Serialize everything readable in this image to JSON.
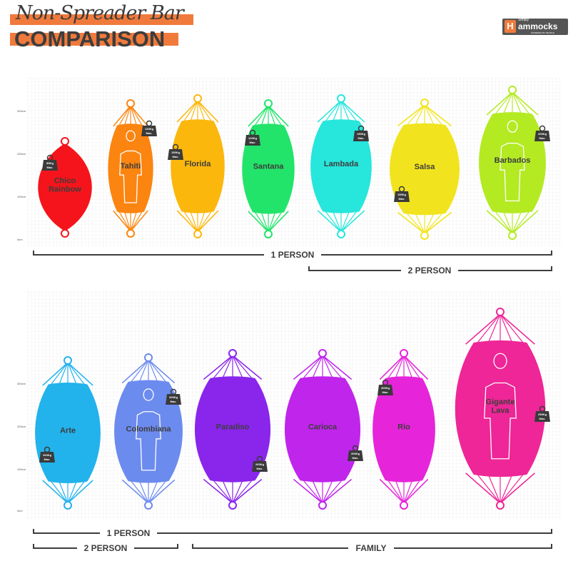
{
  "title": {
    "script": "Non-Spreader Bar",
    "main": "COMPARISON"
  },
  "logo": {
    "small": "Simply",
    "name": "ammocks",
    "initial": "H",
    "tagline": "POWERED BY PEOPLE",
    "accent": "#f07a3c"
  },
  "axis_labels": [
    "300cm",
    "200cm",
    "100cm",
    "0cm"
  ],
  "top_row": [
    {
      "name": "Chico Rainbow",
      "weight": "80Kg",
      "unit": "Max.",
      "color": "#f5141b",
      "person": false
    },
    {
      "name": "Tahiti",
      "weight": "120Kg",
      "unit": "Max.",
      "color": "#fb8510",
      "person": true
    },
    {
      "name": "Florida",
      "weight": "150Kg",
      "unit": "Max.",
      "color": "#fcb70c",
      "person": false
    },
    {
      "name": "Santana",
      "weight": "120Kg",
      "unit": "Max.",
      "color": "#22e46a",
      "person": false
    },
    {
      "name": "Lambada",
      "weight": "150Kg",
      "unit": "Max.",
      "color": "#27e6dc",
      "person": false
    },
    {
      "name": "Salsa",
      "weight": "150Kg",
      "unit": "Max.",
      "color": "#f1e41e",
      "person": false
    },
    {
      "name": "Barbados",
      "weight": "200Kg",
      "unit": "Max.",
      "color": "#b4ea22",
      "person": true
    }
  ],
  "bottom_row": [
    {
      "name": "Arte",
      "weight": "200Kg",
      "unit": "Max.",
      "color": "#22b2ec",
      "person": false
    },
    {
      "name": "Colombiana",
      "weight": "200Kg",
      "unit": "Max.",
      "color": "#6c8bef",
      "person": true
    },
    {
      "name": "Paradiso",
      "weight": "200Kg",
      "unit": "Max.",
      "color": "#8a25ec",
      "person": false
    },
    {
      "name": "Carioca",
      "weight": "200Kg",
      "unit": "Max.",
      "color": "#c025ec",
      "person": false
    },
    {
      "name": "Rio",
      "weight": "200Kg",
      "unit": "Max.",
      "color": "#e625da",
      "person": false
    },
    {
      "name": "Gigante Lava",
      "weight": "250Kg",
      "unit": "Max.",
      "color": "#ee2697",
      "person": true
    }
  ],
  "brackets": {
    "top": [
      "1 PERSON",
      "2 PERSON"
    ],
    "bottom": [
      "1 PERSON",
      "2 PERSON",
      "FAMILY"
    ]
  }
}
